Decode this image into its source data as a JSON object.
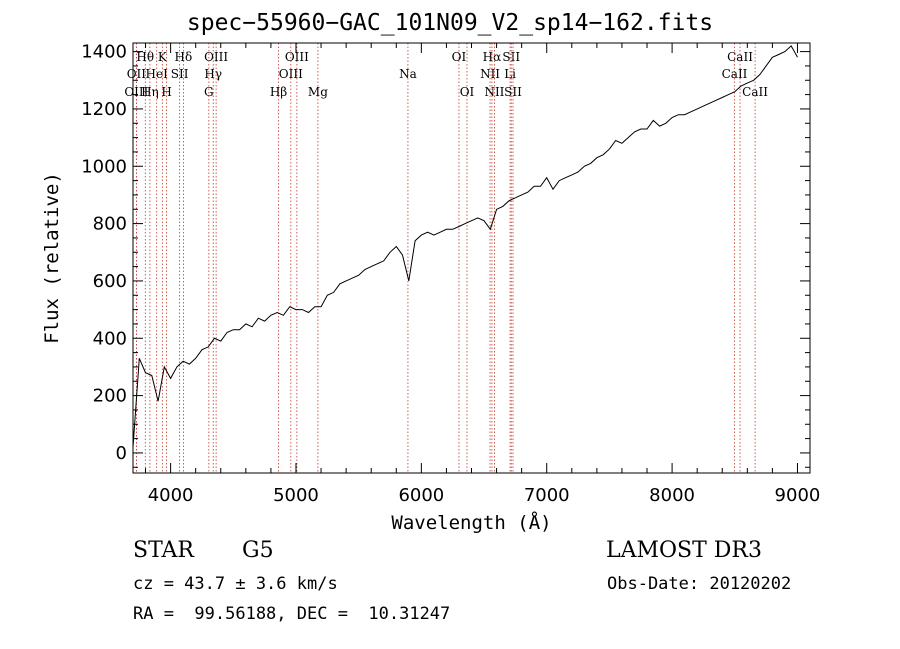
{
  "chart_data": {
    "type": "line",
    "title": "spec−55960−GAC_101N09_V2_sp14−162.fits",
    "xlabel": "Wavelength (Å)",
    "ylabel": "Flux (relative)",
    "xlim": [
      3700,
      9100
    ],
    "ylim": [
      -70,
      1430
    ],
    "xticks": [
      4000,
      5000,
      6000,
      7000,
      8000,
      9000
    ],
    "xtick_labels": [
      "4000",
      "5000",
      "6000",
      "7000",
      "8000",
      "9000"
    ],
    "yticks": [
      0,
      200,
      400,
      600,
      800,
      1000,
      1200,
      1400
    ],
    "ytick_labels": [
      "0",
      "200",
      "400",
      "600",
      "800",
      "1000",
      "1200",
      "1400"
    ],
    "series": [
      {
        "name": "spectrum",
        "x": [
          3700,
          3750,
          3800,
          3850,
          3900,
          3950,
          4000,
          4050,
          4100,
          4150,
          4200,
          4250,
          4300,
          4350,
          4400,
          4450,
          4500,
          4550,
          4600,
          4650,
          4700,
          4750,
          4800,
          4850,
          4900,
          4950,
          5000,
          5050,
          5100,
          5150,
          5200,
          5250,
          5300,
          5350,
          5400,
          5450,
          5500,
          5550,
          5600,
          5650,
          5700,
          5750,
          5800,
          5850,
          5900,
          5950,
          6000,
          6050,
          6100,
          6150,
          6200,
          6250,
          6300,
          6350,
          6400,
          6450,
          6500,
          6550,
          6600,
          6650,
          6700,
          6750,
          6800,
          6850,
          6900,
          6950,
          7000,
          7050,
          7100,
          7150,
          7200,
          7250,
          7300,
          7350,
          7400,
          7450,
          7500,
          7550,
          7600,
          7650,
          7700,
          7750,
          7800,
          7850,
          7900,
          7950,
          8000,
          8050,
          8100,
          8150,
          8200,
          8250,
          8300,
          8350,
          8400,
          8450,
          8500,
          8550,
          8600,
          8650,
          8700,
          8750,
          8800,
          8850,
          8900,
          8950,
          9000
        ],
        "y": [
          20,
          330,
          280,
          270,
          180,
          300,
          260,
          300,
          320,
          310,
          330,
          360,
          370,
          400,
          390,
          420,
          430,
          430,
          450,
          440,
          470,
          460,
          480,
          490,
          480,
          510,
          500,
          500,
          490,
          510,
          510,
          550,
          560,
          590,
          600,
          610,
          620,
          640,
          650,
          660,
          670,
          700,
          720,
          690,
          600,
          740,
          760,
          770,
          760,
          770,
          780,
          780,
          790,
          800,
          810,
          820,
          810,
          780,
          850,
          860,
          880,
          890,
          900,
          910,
          930,
          930,
          960,
          920,
          950,
          960,
          970,
          980,
          1000,
          1010,
          1030,
          1040,
          1060,
          1090,
          1080,
          1100,
          1120,
          1130,
          1130,
          1160,
          1140,
          1150,
          1170,
          1180,
          1180,
          1190,
          1200,
          1210,
          1220,
          1230,
          1240,
          1250,
          1260,
          1280,
          1290,
          1300,
          1320,
          1350,
          1380,
          1390,
          1400,
          1420,
          1380
        ]
      }
    ],
    "line_markers": [
      {
        "label": "Hθ",
        "wl": 3798,
        "row": 0
      },
      {
        "label": "K",
        "wl": 3934,
        "row": 0
      },
      {
        "label": "Hδ",
        "wl": 4102,
        "row": 0
      },
      {
        "label": "OIII",
        "wl": 4363,
        "row": 0
      },
      {
        "label": "OIII",
        "wl": 5007,
        "row": 0
      },
      {
        "label": "OI",
        "wl": 6300,
        "row": 0
      },
      {
        "label": "Hα",
        "wl": 6563,
        "row": 0
      },
      {
        "label": "SII",
        "wl": 6717,
        "row": 0
      },
      {
        "label": "CaII",
        "wl": 8542,
        "row": 0
      },
      {
        "label": "OII",
        "wl": 3727,
        "row": 1
      },
      {
        "label": "HeI",
        "wl": 3889,
        "row": 1
      },
      {
        "label": "SII",
        "wl": 4072,
        "row": 1
      },
      {
        "label": "Hγ",
        "wl": 4340,
        "row": 1
      },
      {
        "label": "OIII",
        "wl": 4959,
        "row": 1
      },
      {
        "label": "Na",
        "wl": 5893,
        "row": 1
      },
      {
        "label": "NII",
        "wl": 6548,
        "row": 1
      },
      {
        "label": "Li",
        "wl": 6708,
        "row": 1
      },
      {
        "label": "CaII",
        "wl": 8498,
        "row": 1
      },
      {
        "label": "OIII",
        "wl": 3727,
        "row": 2
      },
      {
        "label": "Hη",
        "wl": 3835,
        "row": 2
      },
      {
        "label": "H",
        "wl": 3968,
        "row": 2
      },
      {
        "label": "G",
        "wl": 4305,
        "row": 2
      },
      {
        "label": "Hβ",
        "wl": 4861,
        "row": 2
      },
      {
        "label": "Mg",
        "wl": 5175,
        "row": 2
      },
      {
        "label": "OI",
        "wl": 6364,
        "row": 2
      },
      {
        "label": "NII",
        "wl": 6583,
        "row": 2
      },
      {
        "label": "SII",
        "wl": 6731,
        "row": 2
      },
      {
        "label": "CaII",
        "wl": 8662,
        "row": 2
      }
    ]
  },
  "info": {
    "object_class": "STAR",
    "subclass": "G5",
    "survey": "LAMOST DR3",
    "redshift_line": "cz = 43.7 ± 3.6 km/s",
    "obs_date_line": "Obs-Date: 20120202",
    "coords_line": "RA =  99.56188, DEC =  10.31247"
  },
  "colors": {
    "axis": "#000000",
    "spectrum": "#000000",
    "marker_line": "#c0392b"
  }
}
